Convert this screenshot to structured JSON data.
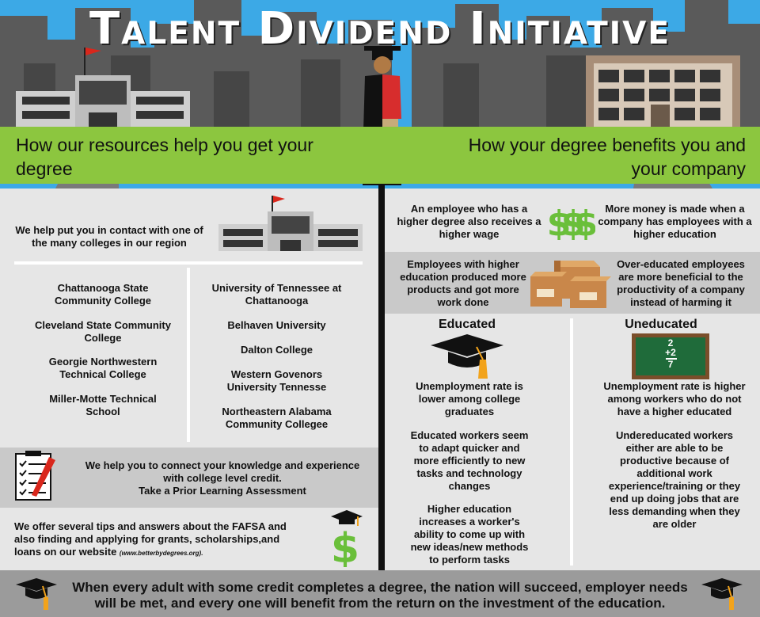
{
  "header": {
    "title": "Talent Dividend Initiative",
    "left_subtitle": "How our resources help you get your degree",
    "right_subtitle": "How your degree benefits you and your company"
  },
  "left": {
    "intro": "We help put you in contact with one of the many colleges in our region",
    "colleges_left": [
      "Chattanooga State Community College",
      "Cleveland State Community College",
      "Georgie Northwestern Technical College",
      "Miller-Motte Technical School"
    ],
    "colleges_right": [
      "University of Tennessee at Chattanooga",
      "Belhaven University",
      "Dalton College",
      "Western Govenors University Tennesse",
      "Northeastern Alabama Community Collegee"
    ],
    "pla_line1": "We help you to connect your knowledge and experience",
    "pla_line2": "with college level credit.",
    "pla_line3": "Take a Prior Learning Assessment",
    "fafsa": "We offer several tips and answers about the FAFSA and also finding and applying for grants, scholarships,and loans on our website",
    "fafsa_url": "(www.betterbydegrees.org)."
  },
  "right": {
    "wage": "An employee who has a higher degree also receives a higher wage",
    "money": "More money is made when a company has employees with a higher education",
    "products": "Employees with higher education produced more products and got more work done",
    "overeducated": "Over-educated employees are more beneficial to the productivity of a company instead of harming it",
    "educated_head": "Educated",
    "uneducated_head": "Uneducated",
    "chalk": [
      "2",
      "+2",
      "7"
    ],
    "educated_points": [
      "Unemployment rate is lower among college graduates",
      "Educated workers seem to adapt quicker and more efficiently to new tasks and technology changes",
      "Higher education increases a worker's ability to come up with new ideas/new methods to perform tasks"
    ],
    "uneducated_points": [
      "Unemployment rate is higher among workers who do not have a higher educated",
      "Undereducated workers either are able to be productive because of additional work experience/training or they end up doing jobs that are less demanding when they are older"
    ]
  },
  "footer": {
    "text": "When every adult with some credit completes a degree, the nation will succeed, employer needs will be met, and every one will benefit from the return on the investment of the education."
  },
  "colors": {
    "sky": "#3ca9e6",
    "green": "#8cc63f",
    "dollar": "#6abf3a",
    "chalkboard": "#1f6b3a"
  }
}
